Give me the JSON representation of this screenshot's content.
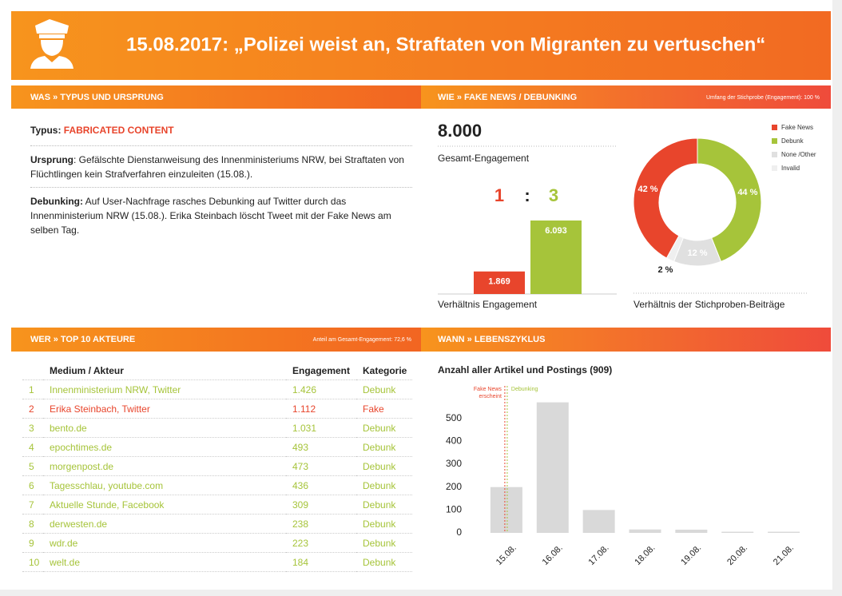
{
  "header": {
    "title": "15.08.2017: „Polizei weist an, Straftaten von Migranten zu vertuschen“"
  },
  "was": {
    "heading": "WAS » TYPUS UND URSPRUNG",
    "typus_label": "Typus:",
    "typus": "FABRICATED CONTENT",
    "ursprung_label": "Ursprung",
    "ursprung": ": Gefälschte Dienstanweisung des Innenministeriums NRW, bei Straftaten von Flüchtlingen kein Strafverfahren einzuleiten (15.08.).",
    "debunking_label": "Debunking:",
    "debunking": " Auf User-Nachfrage rasches Debunking auf Twitter durch das Innenministerium NRW (15.08.). Erika Steinbach löscht Tweet mit der Fake News am selben Tag."
  },
  "wie": {
    "heading": "WIE » FAKE NEWS / DEBUNKING",
    "note": "Umfang der Stichprobe (Engagement): 100 %",
    "total": "8.000",
    "total_label": "Gesamt-Engagement",
    "ratio": [
      "1",
      ":",
      "3"
    ]
  },
  "wer": {
    "heading": "WER » TOP 10 AKTEURE",
    "note": "Anteil am Gesamt-Engagement: 72,6 %",
    "table": {
      "columns": [
        "Medium / Akteur",
        "Engagement",
        "Kategorie"
      ],
      "category_colors": {
        "Debunk": "#a6c43a",
        "Fake": "#e8452c"
      },
      "rows": [
        [
          "1",
          "Innenministerium NRW, Twitter",
          "1.426",
          "Debunk"
        ],
        [
          "2",
          "Erika Steinbach, Twitter",
          "1.112",
          "Fake"
        ],
        [
          "3",
          "bento.de",
          "1.031",
          "Debunk"
        ],
        [
          "4",
          "epochtimes.de",
          "493",
          "Debunk"
        ],
        [
          "5",
          "morgenpost.de",
          "473",
          "Debunk"
        ],
        [
          "6",
          "Tagesschlau, youtube.com",
          "436",
          "Debunk"
        ],
        [
          "7",
          "Aktuelle Stunde, Facebook",
          "309",
          "Debunk"
        ],
        [
          "8",
          "derwesten.de",
          "238",
          "Debunk"
        ],
        [
          "9",
          "wdr.de",
          "223",
          "Debunk"
        ],
        [
          "10",
          "welt.de",
          "184",
          "Debunk"
        ]
      ]
    }
  },
  "wann": {
    "heading": "WANN » LEBENSZYKLUS"
  },
  "chart_data": [
    {
      "type": "bar",
      "x_label": "Verhältnis Engagement",
      "values": [
        1869,
        6093
      ],
      "value_labels": [
        "1.869",
        "6.093"
      ],
      "colors": [
        "#e8452c",
        "#a6c43a"
      ]
    },
    {
      "type": "pie",
      "caption": "Verhältnis der Stichproben-Beiträge",
      "categories": [
        "Fake News",
        "Debunk",
        "None /Other",
        "Invalid"
      ],
      "values": [
        42,
        44,
        12,
        2
      ],
      "value_labels": [
        "42 %",
        "44 %",
        "12 %",
        "2 %"
      ],
      "colors": [
        "#e8452c",
        "#a6c43a",
        "#e0e0e0",
        "#efefef"
      ]
    },
    {
      "type": "bar",
      "title": "Anzahl aller Artikel und Postings (909)",
      "categories": [
        "15.08.",
        "16.08.",
        "17.08.",
        "18.08.",
        "19.08.",
        "20.08.",
        "21.08."
      ],
      "values": [
        200,
        570,
        100,
        15,
        14,
        5,
        5
      ],
      "color": "#d9d9d9",
      "ylim": [
        0,
        600
      ],
      "yticks": [
        0,
        100,
        200,
        300,
        400,
        500
      ],
      "annotations": [
        {
          "lines": [
            "Fake News",
            "erscheint"
          ],
          "x": "15.08.",
          "color": "#e8452c",
          "side": "left"
        },
        {
          "lines": [
            "Debunking"
          ],
          "x": "15.08.",
          "color": "#a6c43a",
          "side": "right"
        }
      ]
    }
  ]
}
